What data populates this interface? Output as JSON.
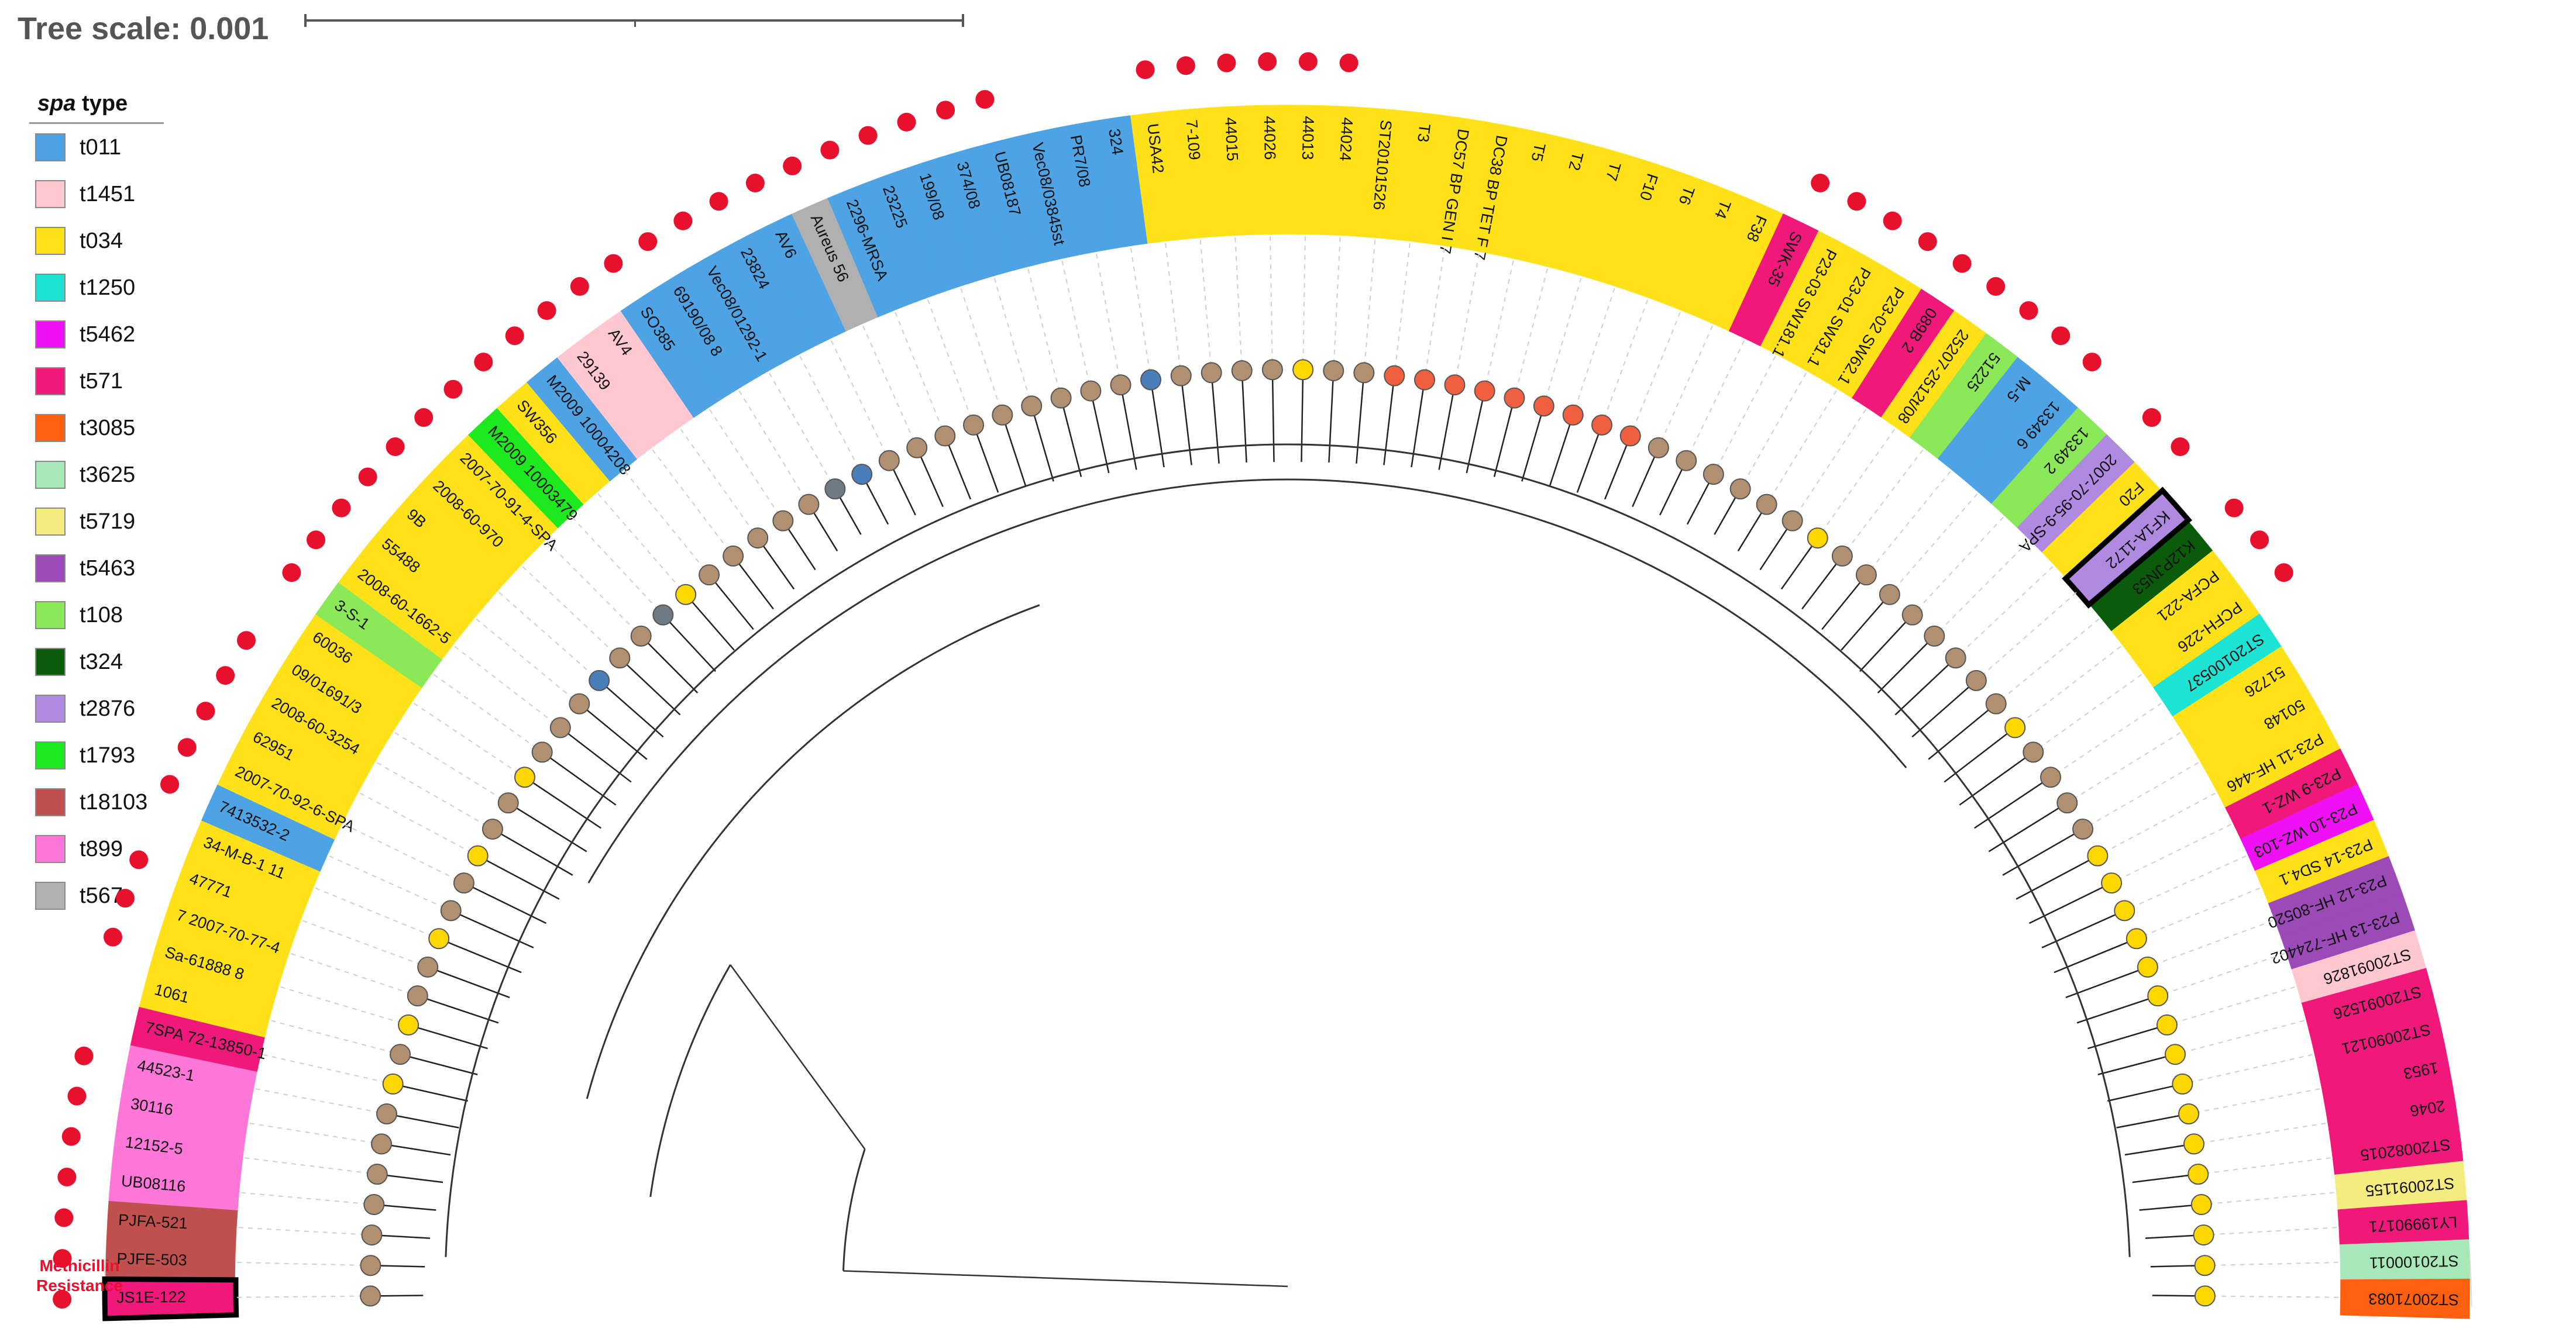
{
  "tree_scale": {
    "label": "Tree scale: 0.001"
  },
  "legend": {
    "title_italic": "spa",
    "title_rest": " type",
    "items": [
      {
        "label": "t011",
        "color": "#4da3e3"
      },
      {
        "label": "t1451",
        "color": "#ffc8d0"
      },
      {
        "label": "t034",
        "color": "#ffe119"
      },
      {
        "label": "t1250",
        "color": "#1de3d4"
      },
      {
        "label": "t5462",
        "color": "#f010f5"
      },
      {
        "label": "t571",
        "color": "#f0187a"
      },
      {
        "label": "t3085",
        "color": "#ff6010"
      },
      {
        "label": "t3625",
        "color": "#a8e8b8"
      },
      {
        "label": "t5719",
        "color": "#f5ec80"
      },
      {
        "label": "t5463",
        "color": "#9b4ab8"
      },
      {
        "label": "t108",
        "color": "#8be858"
      },
      {
        "label": "t324",
        "color": "#0a5c0a"
      },
      {
        "label": "t2876",
        "color": "#b08ae0"
      },
      {
        "label": "t1793",
        "color": "#1ee81e"
      },
      {
        "label": "t18103",
        "color": "#c0504d"
      },
      {
        "label": "t899",
        "color": "#ff77d9"
      },
      {
        "label": "t567",
        "color": "#b0b0b0"
      }
    ]
  },
  "methicillin_label": {
    "line1": "Methicillin",
    "line2": "Resistance"
  },
  "node_colors": {
    "brown": "#b09070",
    "yellow": "#ffd700",
    "orange": "#f06040",
    "blue": "#4a7eb8",
    "grey": "#6e7a84"
  },
  "highlighted": [
    "JS1E-122",
    "KF1A-1172"
  ],
  "leaves": [
    {
      "label": "JS1E-122",
      "spa": "t571",
      "node": "brown",
      "mr": true
    },
    {
      "label": "PJFE-503",
      "spa": "t18103",
      "node": "brown",
      "mr": true
    },
    {
      "label": "PJFA-521",
      "spa": "t18103",
      "node": "brown",
      "mr": true
    },
    {
      "label": "UB08116",
      "spa": "t899",
      "node": "brown",
      "mr": true
    },
    {
      "label": "12152-5",
      "spa": "t899",
      "node": "brown",
      "mr": true
    },
    {
      "label": "30116",
      "spa": "t899",
      "node": "brown",
      "mr": true
    },
    {
      "label": "44523-1",
      "spa": "t899",
      "node": "brown",
      "mr": true
    },
    {
      "label": "7SPA 72-13850-1",
      "spa": "t571",
      "node": "yellow",
      "mr": false
    },
    {
      "label": "1061",
      "spa": "t034",
      "node": "brown",
      "mr": false
    },
    {
      "label": "Sa-61888 8",
      "spa": "t034",
      "node": "yellow",
      "mr": true
    },
    {
      "label": "7 2007-70-77-4",
      "spa": "t034",
      "node": "brown",
      "mr": true
    },
    {
      "label": "47771",
      "spa": "t034",
      "node": "brown",
      "mr": true
    },
    {
      "label": "34-M-B-1 11",
      "spa": "t034",
      "node": "yellow",
      "mr": false
    },
    {
      "label": "7413532-2",
      "spa": "t011",
      "node": "brown",
      "mr": true
    },
    {
      "label": "2007-70-92-6-SPA",
      "spa": "t034",
      "node": "brown",
      "mr": true
    },
    {
      "label": "62951",
      "spa": "t034",
      "node": "yellow",
      "mr": true
    },
    {
      "label": "2008-60-3254",
      "spa": "t034",
      "node": "brown",
      "mr": true
    },
    {
      "label": "09/01691/3",
      "spa": "t034",
      "node": "brown",
      "mr": true
    },
    {
      "label": "60036",
      "spa": "t034",
      "node": "yellow",
      "mr": false
    },
    {
      "label": "3-S-1",
      "spa": "t108",
      "node": "brown",
      "mr": true
    },
    {
      "label": "2008-60-1662-5",
      "spa": "t034",
      "node": "brown",
      "mr": true
    },
    {
      "label": "55488",
      "spa": "t034",
      "node": "brown",
      "mr": true
    },
    {
      "label": "9B",
      "spa": "t034",
      "node": "blue",
      "mr": true
    },
    {
      "label": "2008-60-970",
      "spa": "t034",
      "node": "brown",
      "mr": true
    },
    {
      "label": "2007-70-91-4-SPA",
      "spa": "t034",
      "node": "brown",
      "mr": true
    },
    {
      "label": "M2009 10003479",
      "spa": "t1793",
      "node": "grey",
      "mr": true
    },
    {
      "label": "SW356",
      "spa": "t034",
      "node": "yellow",
      "mr": true
    },
    {
      "label": "M2009 10004208",
      "spa": "t011",
      "node": "brown",
      "mr": true
    },
    {
      "label": "29139",
      "spa": "t1451",
      "node": "brown",
      "mr": true
    },
    {
      "label": "AV4",
      "spa": "t1451",
      "node": "brown",
      "mr": true
    },
    {
      "label": "SO385",
      "spa": "t011",
      "node": "brown",
      "mr": true
    },
    {
      "label": "69190/08 8",
      "spa": "t011",
      "node": "brown",
      "mr": true
    },
    {
      "label": "Vec08/01292-1",
      "spa": "t011",
      "node": "grey",
      "mr": true
    },
    {
      "label": "23824",
      "spa": "t011",
      "node": "blue",
      "mr": true
    },
    {
      "label": "AV6",
      "spa": "t011",
      "node": "brown",
      "mr": true
    },
    {
      "label": "Aureus 56",
      "spa": "t567",
      "node": "brown",
      "mr": true
    },
    {
      "label": "2296-MRSA",
      "spa": "t011",
      "node": "brown",
      "mr": true
    },
    {
      "label": "23225",
      "spa": "t011",
      "node": "brown",
      "mr": true
    },
    {
      "label": "199/08",
      "spa": "t011",
      "node": "brown",
      "mr": true
    },
    {
      "label": "374/08",
      "spa": "t011",
      "node": "brown",
      "mr": true
    },
    {
      "label": "UB08187",
      "spa": "t011",
      "node": "brown",
      "mr": true
    },
    {
      "label": "Vec08/03845st",
      "spa": "t011",
      "node": "brown",
      "mr": false
    },
    {
      "label": "PR7/08",
      "spa": "t011",
      "node": "brown",
      "mr": false
    },
    {
      "label": "324",
      "spa": "t011",
      "node": "blue",
      "mr": false
    },
    {
      "label": "USA42",
      "spa": "t034",
      "node": "brown",
      "mr": true
    },
    {
      "label": "7-109",
      "spa": "t034",
      "node": "brown",
      "mr": true
    },
    {
      "label": "44015",
      "spa": "t034",
      "node": "brown",
      "mr": true
    },
    {
      "label": "44026",
      "spa": "t034",
      "node": "brown",
      "mr": true
    },
    {
      "label": "44013",
      "spa": "t034",
      "node": "yellow",
      "mr": true
    },
    {
      "label": "44024",
      "spa": "t034",
      "node": "brown",
      "mr": true
    },
    {
      "label": "ST20101526",
      "spa": "t034",
      "node": "brown",
      "mr": false
    },
    {
      "label": "T3",
      "spa": "t034",
      "node": "orange",
      "mr": false
    },
    {
      "label": "DC57 BP GEN I 7",
      "spa": "t034",
      "node": "orange",
      "mr": false
    },
    {
      "label": "DC38 BP TET F 7",
      "spa": "t034",
      "node": "orange",
      "mr": false
    },
    {
      "label": "T5",
      "spa": "t034",
      "node": "orange",
      "mr": false
    },
    {
      "label": "T2",
      "spa": "t034",
      "node": "orange",
      "mr": false
    },
    {
      "label": "T7",
      "spa": "t034",
      "node": "orange",
      "mr": false
    },
    {
      "label": "F10",
      "spa": "t034",
      "node": "orange",
      "mr": false
    },
    {
      "label": "T6",
      "spa": "t034",
      "node": "orange",
      "mr": false
    },
    {
      "label": "T4",
      "spa": "t034",
      "node": "orange",
      "mr": false
    },
    {
      "label": "F38",
      "spa": "t034",
      "node": "brown",
      "mr": false
    },
    {
      "label": "SWK-35",
      "spa": "t571",
      "node": "brown",
      "mr": true
    },
    {
      "label": "P23-03 SW181.1",
      "spa": "t034",
      "node": "brown",
      "mr": true
    },
    {
      "label": "P23-01 SW31.1",
      "spa": "t034",
      "node": "brown",
      "mr": true
    },
    {
      "label": "P23-02 SW62.1",
      "spa": "t034",
      "node": "brown",
      "mr": true
    },
    {
      "label": "089B 2",
      "spa": "t571",
      "node": "brown",
      "mr": true
    },
    {
      "label": "25207-2512t/08",
      "spa": "t034",
      "node": "yellow",
      "mr": true
    },
    {
      "label": "51225",
      "spa": "t108",
      "node": "brown",
      "mr": true
    },
    {
      "label": "M-5",
      "spa": "t011",
      "node": "brown",
      "mr": true
    },
    {
      "label": "13349 6",
      "spa": "t011",
      "node": "brown",
      "mr": true
    },
    {
      "label": "13349 2",
      "spa": "t108",
      "node": "brown",
      "mr": false
    },
    {
      "label": "2007-70-95-9-SPA",
      "spa": "t2876",
      "node": "brown",
      "mr": true
    },
    {
      "label": "F20",
      "spa": "t034",
      "node": "brown",
      "mr": true
    },
    {
      "label": "KF1A-1172",
      "spa": "t2876",
      "node": "brown",
      "mr": false
    },
    {
      "label": "K12PJN53",
      "spa": "t324",
      "node": "brown",
      "mr": true
    },
    {
      "label": "PCFA-221",
      "spa": "t034",
      "node": "yellow",
      "mr": true
    },
    {
      "label": "PCFH-226",
      "spa": "t034",
      "node": "brown",
      "mr": true
    },
    {
      "label": "ST20100537",
      "spa": "t1250",
      "node": "brown",
      "mr": false
    },
    {
      "label": "51726",
      "spa": "t034",
      "node": "brown",
      "mr": false
    },
    {
      "label": "50148",
      "spa": "t034",
      "node": "brown",
      "mr": false
    },
    {
      "label": "P23-11 HF-446",
      "spa": "t034",
      "node": "yellow",
      "mr": false
    },
    {
      "label": "P23-9 WZ-1",
      "spa": "t571",
      "node": "yellow",
      "mr": false
    },
    {
      "label": "P23-10 WZ-103",
      "spa": "t5462",
      "node": "yellow",
      "mr": false
    },
    {
      "label": "P23-14 SD4.1",
      "spa": "t034",
      "node": "yellow",
      "mr": false
    },
    {
      "label": "P23-12 HF-80520",
      "spa": "t5463",
      "node": "yellow",
      "mr": false
    },
    {
      "label": "P23-13 HF-724402",
      "spa": "t5463",
      "node": "yellow",
      "mr": false
    },
    {
      "label": "ST20091826",
      "spa": "t1451",
      "node": "yellow",
      "mr": false
    },
    {
      "label": "ST20091526",
      "spa": "t571",
      "node": "yellow",
      "mr": false
    },
    {
      "label": "ST20090121",
      "spa": "t571",
      "node": "yellow",
      "mr": false
    },
    {
      "label": "1953",
      "spa": "t571",
      "node": "yellow",
      "mr": false
    },
    {
      "label": "2046",
      "spa": "t571",
      "node": "yellow",
      "mr": false
    },
    {
      "label": "ST20082015",
      "spa": "t571",
      "node": "yellow",
      "mr": false
    },
    {
      "label": "ST20091155",
      "spa": "t5719",
      "node": "yellow",
      "mr": false
    },
    {
      "label": "LY19990171",
      "spa": "t571",
      "node": "yellow",
      "mr": false
    },
    {
      "label": "ST20100011",
      "spa": "t3625",
      "node": "yellow",
      "mr": false
    },
    {
      "label": "ST20071083",
      "spa": "t3085",
      "node": "yellow",
      "mr": false
    }
  ]
}
